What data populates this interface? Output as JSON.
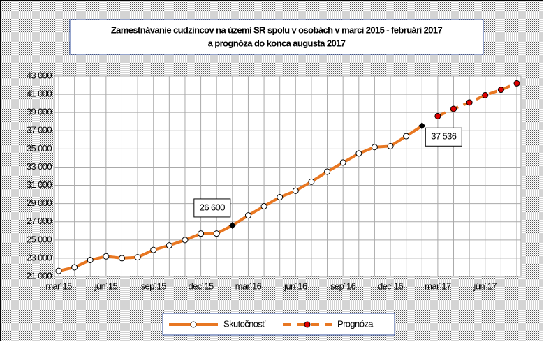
{
  "chart_data": {
    "type": "line",
    "title": [
      "Zamestnávanie cudzincov na území SR spolu v osobách v marci 2015 - februári 2017",
      "a prognóza do konca augusta 2017"
    ],
    "categories": [
      "mar´15",
      null,
      null,
      "jún´15",
      null,
      null,
      "sep´15",
      null,
      null,
      "dec´15",
      null,
      null,
      "mar´16",
      null,
      null,
      "jún´16",
      null,
      null,
      "sep´16",
      null,
      null,
      "dec´16",
      null,
      null,
      "mar´17",
      null,
      null,
      "jún´17",
      null,
      null
    ],
    "series": [
      {
        "name": "Skutočnosť",
        "color": "#e87722",
        "marker_color": "#ffffff",
        "dashed": false,
        "values": [
          21600,
          22000,
          22800,
          23200,
          23000,
          23100,
          23900,
          24400,
          25000,
          25700,
          25700,
          26600,
          27700,
          28700,
          29700,
          30400,
          31400,
          32500,
          33500,
          34500,
          35200,
          35300,
          36400,
          37536,
          null,
          null,
          null,
          null,
          null,
          null
        ],
        "value_labels": [
          null,
          null,
          null,
          null,
          null,
          null,
          null,
          null,
          null,
          null,
          null,
          "26 600",
          null,
          null,
          null,
          null,
          null,
          null,
          null,
          null,
          null,
          null,
          null,
          "37 536",
          null,
          null,
          null,
          null,
          null,
          null
        ]
      },
      {
        "name": "Prognóza",
        "color": "#e87722",
        "marker_color": "#e00000",
        "dashed": true,
        "values": [
          null,
          null,
          null,
          null,
          null,
          null,
          null,
          null,
          null,
          null,
          null,
          null,
          null,
          null,
          null,
          null,
          null,
          null,
          null,
          null,
          null,
          null,
          null,
          null,
          38600,
          39400,
          40100,
          40900,
          41500,
          42200
        ]
      }
    ],
    "ylim": [
      21000,
      43000
    ],
    "yticks": [
      {
        "value": 21000,
        "label": "21 000"
      },
      {
        "value": 23000,
        "label": "23 000"
      },
      {
        "value": 25000,
        "label": "25 000"
      },
      {
        "value": 27000,
        "label": "27 000"
      },
      {
        "value": 29000,
        "label": "29 000"
      },
      {
        "value": 31000,
        "label": "31 000"
      },
      {
        "value": 33000,
        "label": "33 000"
      },
      {
        "value": 35000,
        "label": "35 000"
      },
      {
        "value": 37000,
        "label": "37 000"
      },
      {
        "value": 39000,
        "label": "39 000"
      },
      {
        "value": 41000,
        "label": "41 000"
      },
      {
        "value": 43000,
        "label": "43 000"
      }
    ],
    "grid": true
  }
}
